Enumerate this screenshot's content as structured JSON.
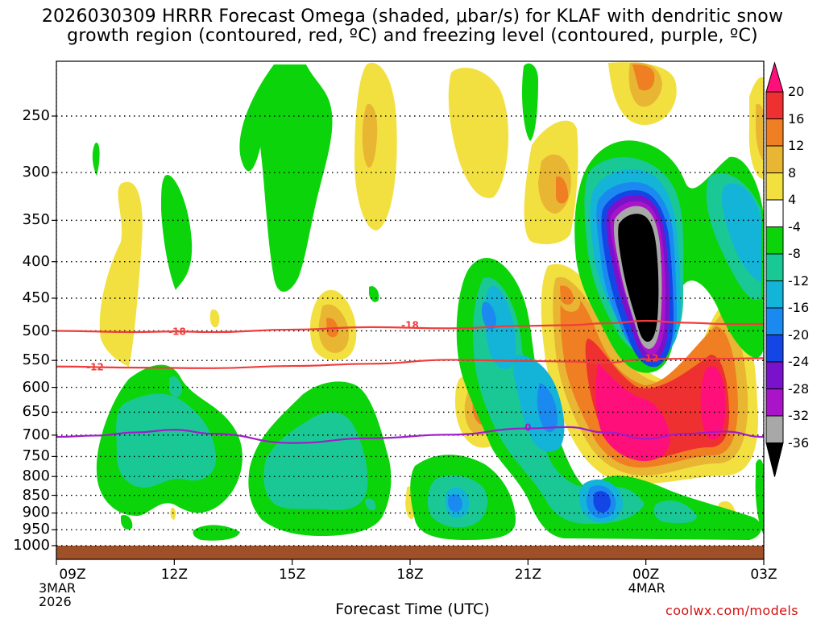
{
  "title": {
    "line1": "2026030309 HRRR Forecast Omega (shaded, μbar/s) for KLAF with dendritic snow",
    "line2": "growth region (contoured, red, ºC) and freezing level (contoured, purple, ºC)"
  },
  "credit": "coolwx.com/models",
  "chart_data": {
    "type": "heatmap",
    "title": "2026030309 HRRR Forecast Omega (shaded, μbar/s) for KLAF with dendritic snow growth region (contoured, red, ºC) and freezing level (contoured, purple, ºC)",
    "xlabel": "Forecast Time (UTC)",
    "ylabel": "",
    "x_ticks": [
      "09Z",
      "12Z",
      "15Z",
      "18Z",
      "21Z",
      "00Z",
      "03Z"
    ],
    "x_hours": [
      0,
      3,
      6,
      9,
      12,
      15,
      18
    ],
    "x_dates": {
      "09Z": [
        "3MAR",
        "2026"
      ],
      "00Z": [
        "4MAR"
      ]
    },
    "y_ticks": [
      250,
      300,
      350,
      400,
      450,
      500,
      550,
      600,
      650,
      700,
      750,
      800,
      850,
      900,
      950,
      1000
    ],
    "y_range_hPa": [
      200,
      1025
    ],
    "y_axis": "pressure (hPa), log scale",
    "colorbar": {
      "labels": [
        "20",
        "16",
        "12",
        "8",
        "4",
        "-4",
        "-8",
        "-12",
        "-16",
        "-20",
        "-24",
        "-28",
        "-32",
        "-36"
      ],
      "colors": [
        "#ff0f7a",
        "#ef3030",
        "#f07e22",
        "#e8b632",
        "#f2e040",
        "#ffffff",
        "#0bd40b",
        "#1ac896",
        "#13b4d8",
        "#1a8af0",
        "#1446e6",
        "#7a12cc",
        "#aa14c8",
        "#a8a8a8",
        "#000000"
      ]
    },
    "colors": {
      "snow_growth_contour": "#f03c3c",
      "freezing_level_contour": "#a01ec8",
      "ground": "#a05028"
    },
    "contours": [
      {
        "name": "-18 °C",
        "label": "-18",
        "color": "#f03c3c",
        "points": [
          [
            0,
            500
          ],
          [
            2,
            502
          ],
          [
            3,
            501
          ],
          [
            4,
            502
          ],
          [
            6,
            498
          ],
          [
            8,
            494
          ],
          [
            10,
            496
          ],
          [
            12,
            492
          ],
          [
            13,
            491
          ],
          [
            14,
            488
          ],
          [
            15,
            484
          ],
          [
            16,
            487
          ],
          [
            17,
            489
          ],
          [
            18,
            489
          ]
        ]
      },
      {
        "name": "-12 °C",
        "label": "-12",
        "color": "#f03c3c",
        "points": [
          [
            0,
            561
          ],
          [
            2,
            563
          ],
          [
            4,
            564
          ],
          [
            6,
            560
          ],
          [
            8,
            556
          ],
          [
            10,
            549
          ],
          [
            12,
            551
          ],
          [
            13,
            552
          ],
          [
            14,
            554
          ],
          [
            15,
            548
          ],
          [
            16,
            547
          ],
          [
            17,
            547
          ],
          [
            18,
            546
          ]
        ]
      },
      {
        "name": "0 °C",
        "label": "0",
        "color": "#a01ec8",
        "points": [
          [
            0,
            704
          ],
          [
            1,
            701
          ],
          [
            2,
            694
          ],
          [
            3,
            688
          ],
          [
            4,
            697
          ],
          [
            6,
            718
          ],
          [
            8,
            707
          ],
          [
            10,
            699
          ],
          [
            12,
            685
          ],
          [
            13,
            682
          ],
          [
            14,
            694
          ],
          [
            15,
            708
          ],
          [
            16,
            697
          ],
          [
            17,
            692
          ],
          [
            18,
            704
          ]
        ]
      }
    ],
    "contour_labels": [
      {
        "text": "-18",
        "hour": 0.0,
        "hPa": 501,
        "color": "#f03c3c"
      },
      {
        "text": "-18",
        "hour": 9.0,
        "hPa": 491,
        "color": "#f03c3c"
      },
      {
        "text": "-12",
        "hour": -2.7,
        "hPa": 562,
        "color": "#f03c3c"
      },
      {
        "text": "-12",
        "hour": 15.1,
        "hPa": 546,
        "color": "#f03c3c"
      },
      {
        "text": "0",
        "hour": 12.0,
        "hPa": 683,
        "color": "#a01ec8"
      }
    ]
  }
}
